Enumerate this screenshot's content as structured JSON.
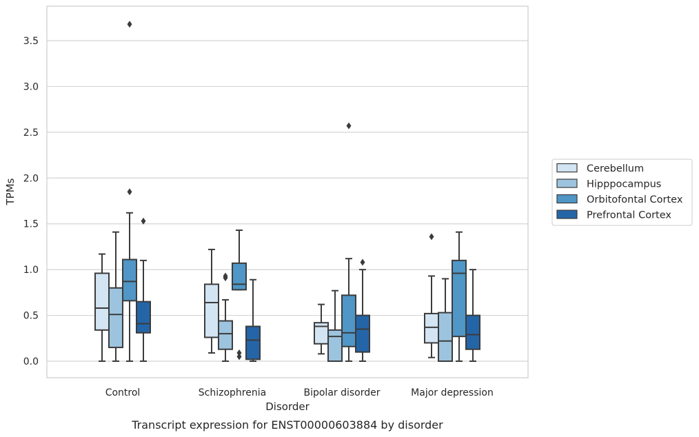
{
  "chart_data": {
    "type": "box",
    "title": "",
    "caption": "Transcript expression for ENST00000603884 by disorder",
    "xlabel": "Disorder",
    "ylabel": "TPMs",
    "ylim": [
      -0.18,
      3.88
    ],
    "yticks": [
      "0.0",
      "0.5",
      "1.0",
      "1.5",
      "2.0",
      "2.5",
      "3.0",
      "3.5"
    ],
    "ytick_values": [
      0,
      0.5,
      1.0,
      1.5,
      2.0,
      2.5,
      3.0,
      3.5
    ],
    "grid": true,
    "legend_position": "right",
    "categories": [
      "Control",
      "Schizophrenia",
      "Bipolar disorder",
      "Major depression"
    ],
    "series": [
      {
        "name": "Cerebellum",
        "color": "#d3e4f3",
        "boxes": [
          {
            "whisker_low": 0.0,
            "q1": 0.34,
            "median": 0.58,
            "q3": 0.96,
            "whisker_high": 1.17,
            "outliers": []
          },
          {
            "whisker_low": 0.09,
            "q1": 0.26,
            "median": 0.64,
            "q3": 0.84,
            "whisker_high": 1.22,
            "outliers": []
          },
          {
            "whisker_low": 0.08,
            "q1": 0.19,
            "median": 0.38,
            "q3": 0.42,
            "whisker_high": 0.62,
            "outliers": []
          },
          {
            "whisker_low": 0.04,
            "q1": 0.2,
            "median": 0.37,
            "q3": 0.52,
            "whisker_high": 0.93,
            "outliers": [
              1.36
            ]
          }
        ]
      },
      {
        "name": "Hipppocampus",
        "color": "#9dc4de",
        "boxes": [
          {
            "whisker_low": 0.0,
            "q1": 0.15,
            "median": 0.51,
            "q3": 0.8,
            "whisker_high": 1.41,
            "outliers": []
          },
          {
            "whisker_low": 0.0,
            "q1": 0.13,
            "median": 0.3,
            "q3": 0.44,
            "whisker_high": 0.67,
            "outliers": [
              0.91,
              0.93
            ]
          },
          {
            "whisker_low": 0.0,
            "q1": 0.0,
            "median": 0.27,
            "q3": 0.34,
            "whisker_high": 0.77,
            "outliers": []
          },
          {
            "whisker_low": 0.0,
            "q1": 0.0,
            "median": 0.22,
            "q3": 0.53,
            "whisker_high": 0.9,
            "outliers": []
          }
        ]
      },
      {
        "name": "Orbitofontal Cortex",
        "color": "#5096c6",
        "boxes": [
          {
            "whisker_low": 0.0,
            "q1": 0.66,
            "median": 0.87,
            "q3": 1.11,
            "whisker_high": 1.62,
            "outliers": [
              1.85,
              3.68
            ]
          },
          {
            "whisker_low": 0.78,
            "q1": 0.78,
            "median": 0.84,
            "q3": 1.07,
            "whisker_high": 1.43,
            "outliers": [
              0.05,
              0.09
            ]
          },
          {
            "whisker_low": 0.0,
            "q1": 0.16,
            "median": 0.31,
            "q3": 0.72,
            "whisker_high": 1.12,
            "outliers": [
              2.57
            ]
          },
          {
            "whisker_low": 0.0,
            "q1": 0.27,
            "median": 0.96,
            "q3": 1.1,
            "whisker_high": 1.41,
            "outliers": []
          }
        ]
      },
      {
        "name": "Prefrontal Cortex",
        "color": "#2465a8",
        "boxes": [
          {
            "whisker_low": 0.0,
            "q1": 0.31,
            "median": 0.41,
            "q3": 0.65,
            "whisker_high": 1.1,
            "outliers": [
              1.53
            ]
          },
          {
            "whisker_low": 0.0,
            "q1": 0.02,
            "median": 0.23,
            "q3": 0.38,
            "whisker_high": 0.89,
            "outliers": []
          },
          {
            "whisker_low": 0.0,
            "q1": 0.1,
            "median": 0.35,
            "q3": 0.5,
            "whisker_high": 1.0,
            "outliers": [
              1.08
            ]
          },
          {
            "whisker_low": 0.0,
            "q1": 0.13,
            "median": 0.29,
            "q3": 0.5,
            "whisker_high": 1.0,
            "outliers": []
          }
        ]
      }
    ]
  }
}
